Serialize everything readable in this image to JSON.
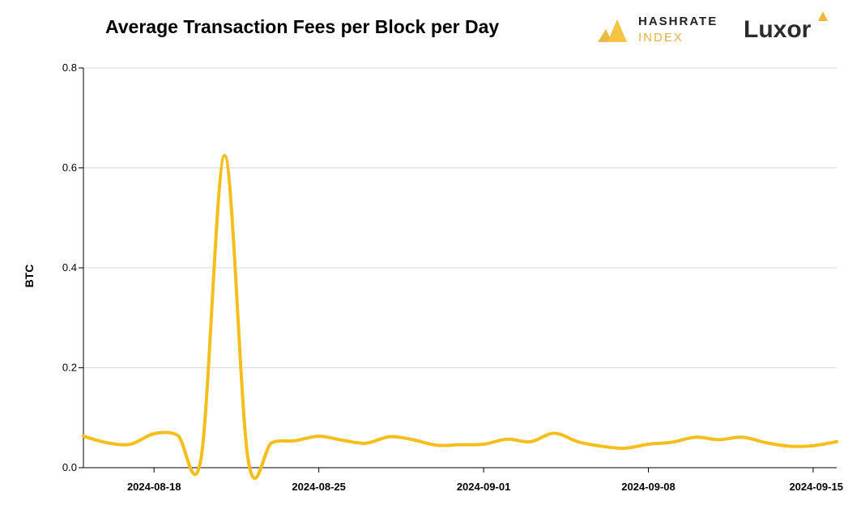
{
  "header": {
    "title": "Average Transaction Fees per Block per Day"
  },
  "logos": {
    "hashrate_line1": "HASHRATE",
    "hashrate_line2": "INDEX",
    "luxor": "Luxor",
    "hashrate_icon": "hashrate-index-logo-icon",
    "luxor_icon": "luxor-logo-icon",
    "brand_color": "#F5BE1C"
  },
  "chart_data": {
    "type": "line",
    "title": "Average Transaction Fees per Block per Day",
    "xlabel": "",
    "ylabel": "BTC",
    "x": [
      "2024-08-15",
      "2024-08-16",
      "2024-08-17",
      "2024-08-18",
      "2024-08-19",
      "2024-08-20",
      "2024-08-21",
      "2024-08-22",
      "2024-08-23",
      "2024-08-24",
      "2024-08-25",
      "2024-08-26",
      "2024-08-27",
      "2024-08-28",
      "2024-08-29",
      "2024-08-30",
      "2024-08-31",
      "2024-09-01",
      "2024-09-02",
      "2024-09-03",
      "2024-09-04",
      "2024-09-05",
      "2024-09-06",
      "2024-09-07",
      "2024-09-08",
      "2024-09-09",
      "2024-09-10",
      "2024-09-11",
      "2024-09-12",
      "2024-09-13",
      "2024-09-14",
      "2024-09-15",
      "2024-09-16"
    ],
    "series": [
      {
        "name": "",
        "color": "#F5BE1C",
        "values": [
          0.063,
          0.05,
          0.047,
          0.068,
          0.065,
          0.02,
          0.625,
          0.015,
          0.05,
          0.054,
          0.063,
          0.055,
          0.049,
          0.062,
          0.056,
          0.045,
          0.046,
          0.047,
          0.057,
          0.052,
          0.069,
          0.052,
          0.043,
          0.039,
          0.047,
          0.051,
          0.061,
          0.056,
          0.061,
          0.05,
          0.043,
          0.044,
          0.052
        ]
      }
    ],
    "x_ticks": [
      "2024-08-18",
      "2024-08-25",
      "2024-09-01",
      "2024-09-08",
      "2024-09-15"
    ],
    "y_ticks": [
      "0.0",
      "0.2",
      "0.4",
      "0.6",
      "0.8"
    ],
    "ylim": [
      0,
      0.8
    ],
    "grid": true,
    "legend": "none"
  }
}
